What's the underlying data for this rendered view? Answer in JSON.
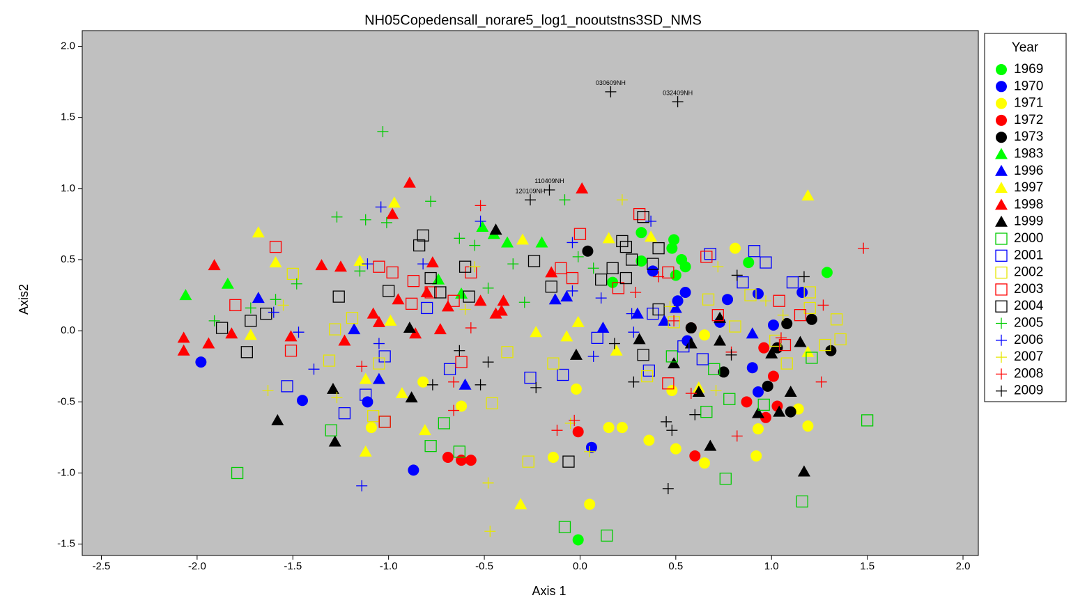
{
  "chart_data": {
    "type": "scatter",
    "title": "NH05Copedensall_norare5_log1_nooutstns3SD_NMS",
    "x_label": "Axis 1",
    "y_label": "Axis2",
    "legend_title": "Year",
    "legend": "right",
    "xlim": [
      -2.6,
      2.08
    ],
    "ylim": [
      -1.58,
      2.11
    ],
    "xticks": [
      -2.5,
      {
        "value": -2.0,
        "label": "-2.0"
      },
      -1.5,
      {
        "value": -1.0,
        "label": "-1.0"
      },
      -0.5,
      {
        "value": 0.0,
        "label": "0.0"
      },
      0.5,
      {
        "value": 1.0,
        "label": "1.0"
      },
      1.5,
      {
        "value": 2.0,
        "label": "2.0"
      }
    ],
    "yticks": [
      -1.5,
      {
        "value": -1.0,
        "label": "-1.0"
      },
      -0.5,
      {
        "value": 0.0,
        "label": "0.0"
      },
      0.5,
      {
        "value": 1.0,
        "label": "1.0"
      },
      1.5,
      {
        "value": 2.0,
        "label": "2.0"
      }
    ],
    "series": [
      {
        "name": "1969",
        "color": "#00ff00",
        "marker": "circle",
        "x": [
          0.32,
          0.49,
          0.48,
          0.32,
          0.53,
          0.55,
          0.5,
          0.17,
          0.88,
          1.29,
          -0.01
        ],
        "values": [
          0.69,
          0.64,
          0.58,
          0.49,
          0.5,
          0.45,
          0.39,
          0.34,
          0.48,
          0.41,
          -1.47
        ]
      },
      {
        "name": "1970",
        "color": "#0000ff",
        "marker": "circle",
        "x": [
          -1.98,
          -1.45,
          -1.11,
          -0.87,
          0.06,
          0.38,
          0.55,
          0.51,
          0.56,
          0.73,
          0.77,
          0.93,
          1.16,
          1.01,
          0.9,
          0.93
        ],
        "values": [
          -0.22,
          -0.49,
          -0.5,
          -0.98,
          -0.82,
          0.42,
          0.27,
          0.21,
          -0.07,
          0.06,
          0.22,
          0.26,
          0.27,
          0.04,
          -0.26,
          -0.43
        ]
      },
      {
        "name": "1971",
        "color": "#ffff00",
        "marker": "circle",
        "x": [
          -0.82,
          -1.09,
          -0.62,
          -0.02,
          0.15,
          0.22,
          0.05,
          -0.14,
          0.36,
          0.5,
          0.65,
          0.48,
          0.81,
          0.93,
          0.92,
          1.14,
          1.19,
          0.65
        ],
        "values": [
          -0.36,
          -0.68,
          -0.53,
          -0.41,
          -0.68,
          -0.68,
          -1.22,
          -0.89,
          -0.77,
          -0.83,
          -0.93,
          -0.42,
          0.58,
          -0.69,
          -0.88,
          -0.55,
          -0.67,
          -0.03
        ]
      },
      {
        "name": "1972",
        "color": "#ff0000",
        "marker": "circle",
        "x": [
          -0.69,
          -0.62,
          -0.57,
          -0.01,
          0.6,
          0.87,
          0.96,
          0.97,
          1.01,
          1.03,
          0.58
        ],
        "values": [
          -0.89,
          -0.91,
          -0.91,
          -0.71,
          -0.88,
          -0.5,
          -0.12,
          -0.61,
          -0.32,
          -0.53,
          0.02
        ]
      },
      {
        "name": "1973",
        "color": "#000000",
        "marker": "circle",
        "x": [
          0.04,
          0.58,
          0.75,
          0.98,
          1.03,
          1.08,
          1.21,
          1.31,
          1.1
        ],
        "values": [
          0.56,
          0.02,
          -0.29,
          -0.39,
          -0.12,
          0.05,
          0.08,
          -0.14,
          -0.57
        ]
      },
      {
        "name": "1983",
        "color": "#00ff00",
        "marker": "triangle",
        "x": [
          -2.06,
          -1.84,
          -0.74,
          -0.51,
          -0.45,
          -0.38,
          -0.2,
          -0.62
        ],
        "values": [
          0.25,
          0.33,
          0.36,
          0.73,
          0.68,
          0.62,
          0.62,
          0.26
        ]
      },
      {
        "name": "1996",
        "color": "#0000ff",
        "marker": "triangle",
        "x": [
          -1.68,
          -1.18,
          -1.05,
          -0.6,
          -0.13,
          -0.07,
          0.12,
          0.3,
          0.44,
          0.5,
          0.9
        ],
        "values": [
          0.23,
          0.01,
          -0.34,
          -0.38,
          0.22,
          0.24,
          0.02,
          0.12,
          0.07,
          0.16,
          -0.02
        ]
      },
      {
        "name": "1997",
        "color": "#ffff00",
        "marker": "triangle",
        "x": [
          -1.68,
          -1.59,
          -1.72,
          -1.15,
          -0.97,
          -1.12,
          -1.12,
          -0.93,
          -0.81,
          -0.99,
          -0.3,
          -0.23,
          -0.31,
          -0.07,
          -0.01,
          0.15,
          0.19,
          0.37,
          0.62,
          1.19,
          1.19
        ],
        "values": [
          0.69,
          0.48,
          -0.03,
          0.49,
          0.9,
          -0.34,
          -0.85,
          -0.44,
          -0.7,
          0.07,
          0.64,
          -0.01,
          -1.22,
          -0.04,
          0.06,
          0.65,
          -0.14,
          0.66,
          -0.4,
          0.95,
          -0.15
        ]
      },
      {
        "name": "1998",
        "color": "#ff0000",
        "marker": "triangle",
        "x": [
          -2.07,
          -2.07,
          -1.94,
          -1.91,
          -1.82,
          -1.51,
          -1.35,
          -1.25,
          -1.23,
          -1.05,
          -1.08,
          -0.95,
          -0.98,
          -0.89,
          -0.8,
          -0.77,
          -0.86,
          -0.73,
          -0.69,
          -0.52,
          -0.44,
          -0.4,
          -0.15,
          0.01,
          -0.41
        ],
        "values": [
          -0.05,
          -0.14,
          -0.09,
          0.46,
          -0.02,
          -0.04,
          0.46,
          0.45,
          -0.07,
          0.06,
          0.12,
          0.22,
          0.82,
          1.04,
          0.27,
          0.48,
          -0.02,
          0.01,
          0.17,
          0.21,
          0.12,
          0.21,
          0.41,
          1.0,
          0.14
        ]
      },
      {
        "name": "1999",
        "color": "#000000",
        "marker": "triangle",
        "x": [
          -1.58,
          -1.29,
          -1.28,
          -0.89,
          -0.88,
          -0.44,
          -0.02,
          0.31,
          0.49,
          0.58,
          0.62,
          0.73,
          0.68,
          0.93,
          1.0,
          1.1,
          1.15,
          1.04,
          1.17,
          0.73
        ],
        "values": [
          -0.63,
          -0.41,
          -0.78,
          0.02,
          -0.47,
          0.71,
          -0.17,
          -0.06,
          -0.23,
          -0.09,
          -0.43,
          0.09,
          -0.81,
          -0.58,
          -0.16,
          -0.43,
          -0.08,
          -0.57,
          -0.99,
          -0.07
        ]
      },
      {
        "name": "2000",
        "color": "#00cc00",
        "marker": "square",
        "x": [
          -1.79,
          -1.3,
          -1.02,
          -0.78,
          -0.71,
          -0.63,
          -0.08,
          0.14,
          0.66,
          0.76,
          0.78,
          0.7,
          0.96,
          1.21,
          1.5,
          1.16,
          0.48
        ],
        "values": [
          -1.0,
          -0.7,
          -0.64,
          -0.81,
          -0.65,
          -0.85,
          -1.38,
          -1.44,
          -0.57,
          -1.04,
          -0.48,
          -0.27,
          -0.52,
          -0.19,
          -0.63,
          -1.2,
          -0.18
        ]
      },
      {
        "name": "2001",
        "color": "#0000ff",
        "marker": "square",
        "x": [
          -1.53,
          -1.23,
          -1.12,
          -1.02,
          -0.8,
          -0.68,
          -0.26,
          -0.09,
          0.09,
          0.36,
          0.64,
          0.68,
          0.85,
          0.91,
          0.97,
          1.11,
          0.38,
          0.54
        ],
        "values": [
          -0.39,
          -0.58,
          -0.45,
          -0.18,
          0.16,
          -0.27,
          -0.33,
          -0.31,
          -0.05,
          -0.28,
          -0.2,
          0.54,
          0.34,
          0.56,
          0.48,
          0.34,
          0.12,
          -0.11
        ]
      },
      {
        "name": "2002",
        "color": "#e6e600",
        "marker": "square",
        "x": [
          -1.5,
          -1.28,
          -1.31,
          -1.19,
          -1.05,
          -1.08,
          -0.38,
          -0.46,
          -0.27,
          -0.14,
          0.35,
          0.49,
          0.67,
          0.81,
          0.89,
          1.02,
          1.08,
          1.2,
          1.34,
          1.36,
          1.28,
          1.2
        ],
        "values": [
          0.4,
          0.01,
          -0.21,
          0.09,
          -0.23,
          -0.6,
          -0.15,
          -0.51,
          -0.92,
          -0.23,
          -0.32,
          0.06,
          0.22,
          0.03,
          0.25,
          -0.07,
          -0.23,
          0.16,
          0.08,
          -0.06,
          -0.1,
          0.27
        ]
      },
      {
        "name": "2003",
        "color": "#ff0000",
        "marker": "square",
        "x": [
          -1.8,
          -1.59,
          -1.51,
          -1.05,
          -0.98,
          -0.87,
          -0.88,
          -0.78,
          -0.57,
          -0.66,
          -0.62,
          -1.02,
          -0.1,
          -0.04,
          0.0,
          0.2,
          0.31,
          0.46,
          0.46,
          0.66,
          0.72,
          1.04,
          1.15,
          1.07
        ],
        "values": [
          0.18,
          0.59,
          -0.14,
          0.45,
          0.41,
          0.35,
          0.19,
          0.27,
          0.41,
          0.21,
          -0.22,
          -0.64,
          0.44,
          0.37,
          0.68,
          0.3,
          0.82,
          0.41,
          -0.37,
          0.52,
          0.11,
          0.21,
          0.11,
          -0.1
        ]
      },
      {
        "name": "2004",
        "color": "#000000",
        "marker": "square",
        "x": [
          -1.87,
          -1.74,
          -1.72,
          -1.64,
          -1.26,
          -1.0,
          -0.84,
          -0.82,
          -0.78,
          -0.73,
          -0.6,
          -0.58,
          -0.24,
          -0.15,
          -0.06,
          0.11,
          0.17,
          0.22,
          0.24,
          0.24,
          0.27,
          0.33,
          0.33,
          0.38,
          0.41,
          0.41
        ],
        "values": [
          0.02,
          -0.15,
          0.07,
          0.12,
          0.24,
          0.28,
          0.6,
          0.67,
          0.37,
          0.27,
          0.45,
          0.24,
          0.49,
          0.31,
          -0.92,
          0.36,
          0.44,
          0.63,
          0.59,
          0.37,
          0.5,
          0.8,
          -0.17,
          0.47,
          0.58,
          0.15
        ]
      },
      {
        "name": "2005",
        "color": "#00cc00",
        "marker": "plus",
        "x": [
          -1.03,
          -1.27,
          -1.12,
          -1.01,
          -0.78,
          -0.63,
          -0.55,
          -0.35,
          -0.08,
          -0.29,
          -1.48,
          -1.91,
          -1.72,
          -1.59,
          -1.15,
          -0.48,
          0.07,
          -0.01
        ],
        "values": [
          1.4,
          0.8,
          0.78,
          0.76,
          0.91,
          0.65,
          0.6,
          0.47,
          0.92,
          0.2,
          0.33,
          0.07,
          0.16,
          0.22,
          0.42,
          0.3,
          0.44,
          0.52
        ]
      },
      {
        "name": "2006",
        "color": "#0000ff",
        "marker": "plus",
        "x": [
          -1.04,
          -0.52,
          -0.82,
          -1.11,
          -1.47,
          -1.39,
          -1.05,
          -1.14,
          -0.04,
          -0.04,
          0.07,
          0.11,
          0.27,
          0.37,
          0.28,
          -1.6
        ],
        "values": [
          0.87,
          0.77,
          0.47,
          0.47,
          -0.01,
          -0.27,
          -0.09,
          -1.09,
          0.62,
          0.28,
          -0.18,
          0.23,
          0.12,
          0.77,
          -0.01,
          0.13
        ]
      },
      {
        "name": "2007",
        "color": "#e6e600",
        "marker": "plus",
        "x": [
          -1.63,
          -1.27,
          -1.55,
          -0.55,
          -0.6,
          -0.05,
          0.05,
          -0.48,
          -0.47,
          0.22,
          0.72,
          0.71,
          0.97,
          1.06,
          0.47
        ],
        "values": [
          -0.42,
          -0.47,
          0.18,
          0.45,
          0.15,
          -0.65,
          -0.85,
          -1.07,
          -1.41,
          0.92,
          0.45,
          -0.42,
          0.21,
          0.11,
          0.17
        ]
      },
      {
        "name": "2008",
        "color": "#ff0000",
        "marker": "plus",
        "x": [
          -1.14,
          -0.52,
          -0.57,
          -0.66,
          -0.66,
          -0.12,
          -0.03,
          0.29,
          0.41,
          0.49,
          0.58,
          0.82,
          0.79,
          1.48,
          1.26,
          1.27,
          1.05
        ],
        "values": [
          -0.25,
          0.88,
          0.02,
          -0.36,
          -0.56,
          -0.7,
          -0.63,
          0.27,
          0.38,
          0.07,
          -0.44,
          -0.74,
          -0.15,
          0.58,
          -0.36,
          0.18,
          -0.05
        ]
      },
      {
        "name": "2009",
        "color": "#000000",
        "marker": "plus",
        "x": [
          0.16,
          0.51,
          -0.16,
          -0.26,
          -0.63,
          -0.48,
          -0.23,
          -0.77,
          -0.52,
          0.28,
          0.45,
          0.48,
          0.46,
          0.6,
          0.82,
          1.17,
          0.79,
          0.18
        ],
        "values": [
          1.68,
          1.61,
          0.99,
          0.92,
          -0.14,
          -0.22,
          -0.4,
          -0.38,
          -0.38,
          -0.36,
          -0.64,
          -0.7,
          -1.11,
          -0.59,
          0.39,
          0.38,
          -0.17,
          -0.09
        ],
        "point_labels": [
          "030609NH",
          "032409NH",
          "110409NH",
          "120109NH",
          null,
          null,
          null,
          null,
          null,
          null,
          null,
          null,
          null,
          null,
          null,
          null,
          null,
          null
        ]
      }
    ]
  }
}
